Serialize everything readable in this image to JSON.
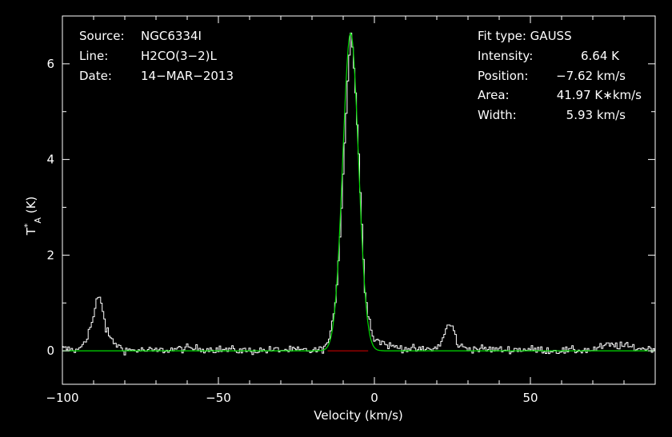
{
  "header_left": {
    "source_label": "Source:",
    "source_value": "NGC6334I",
    "line_label": "Line:",
    "line_value": "H2CO(3−2)L",
    "date_label": "Date:",
    "date_value": "14−MAR−2013"
  },
  "fit_info": {
    "fit_type": "Fit type: GAUSS",
    "intensity_label": "Intensity:",
    "intensity_value": "6.64 K",
    "position_label": "Position:",
    "position_value": "−7.62 km/s",
    "area_label": "Area:",
    "area_value": "41.97 K∗km/s",
    "width_label": "Width:",
    "width_value": "5.93 km/s"
  },
  "chart_data": {
    "type": "line",
    "title": "",
    "xlabel": "Velocity (km/s)",
    "ylabel": "T*A (K)",
    "xlim": [
      -100,
      90
    ],
    "ylim": [
      -0.7,
      7.0
    ],
    "xticks": [
      -100,
      -50,
      0,
      50
    ],
    "xtick_labels": [
      "−100",
      "−50",
      "0",
      "50"
    ],
    "yticks": [
      0,
      2,
      4,
      6
    ],
    "ytick_labels": [
      "0",
      "2",
      "4",
      "6"
    ],
    "grid": false,
    "colors": {
      "background": "#000000",
      "axes": "#ffffff",
      "spectrum": "#ffffff",
      "fit": "#00dd00",
      "baseline": "#dd0000"
    },
    "spectrum": {
      "name": "",
      "velocity_step": 0.5,
      "x": [
        -100,
        -95,
        -92,
        -90,
        -89,
        -88,
        -87,
        -86,
        -84,
        -82,
        -80,
        -70,
        -60,
        -50,
        -40,
        -30,
        -20,
        -17,
        -15,
        -14,
        -13,
        -12,
        -11,
        -10,
        -9,
        -8,
        -7.6,
        -7,
        -6,
        -5,
        -4,
        -3.5,
        -3,
        -2,
        -1,
        0,
        5,
        10,
        15,
        20,
        22,
        23,
        24,
        25,
        26,
        27,
        30,
        40,
        50,
        60,
        70,
        75,
        80,
        85,
        90
      ],
      "y": [
        0.05,
        0.0,
        0.3,
        0.7,
        1.05,
        1.1,
        0.85,
        0.45,
        0.2,
        0.1,
        0.02,
        0.0,
        0.05,
        0.03,
        0.0,
        0.02,
        0.0,
        0.02,
        0.15,
        0.35,
        0.75,
        1.4,
        2.4,
        3.7,
        5.0,
        6.2,
        6.75,
        6.4,
        5.4,
        4.1,
        2.6,
        1.9,
        1.3,
        0.8,
        0.45,
        0.25,
        0.1,
        0.05,
        0.02,
        0.05,
        0.25,
        0.45,
        0.55,
        0.5,
        0.3,
        0.1,
        0.05,
        0.02,
        0.03,
        0.0,
        0.02,
        0.12,
        0.1,
        0.05,
        0.05
      ]
    },
    "fit": {
      "name": "",
      "type": "gauss",
      "amplitude": 6.64,
      "center": -7.62,
      "fwhm": 5.93,
      "x_range": [
        -100,
        90
      ]
    },
    "baseline": {
      "x": [
        -15,
        -2
      ],
      "y": [
        0,
        0
      ]
    }
  }
}
